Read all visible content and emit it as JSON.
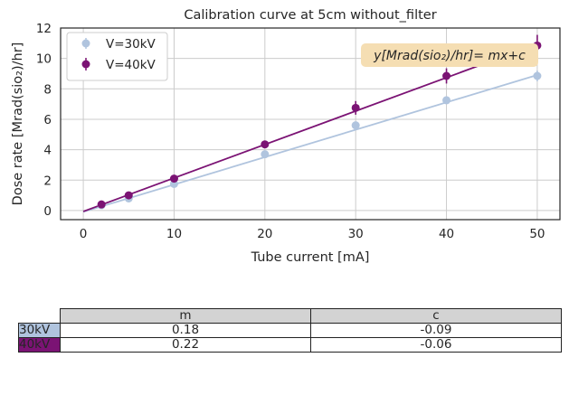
{
  "chart_data": {
    "type": "scatter",
    "title": "Calibration curve at 5cm without_filter",
    "xlabel": "Tube current [mA]",
    "ylabel": "Dose rate [Mrad(sio₂)/hr]",
    "xlim": [
      -2.5,
      52.5
    ],
    "ylim": [
      -0.6,
      12.0
    ],
    "xticks": [
      0,
      10,
      20,
      30,
      40,
      50
    ],
    "yticks": [
      0,
      2,
      4,
      6,
      8,
      10,
      12
    ],
    "grid": true,
    "legend_position": "top-left",
    "annotation": "y[Mrad(sio₂)/hr]= mx+c",
    "series": [
      {
        "name": "V=30kV",
        "color": "#b0c4de",
        "x": [
          2,
          5,
          10,
          20,
          30,
          40,
          50
        ],
        "y": [
          0.35,
          0.8,
          1.75,
          3.7,
          5.6,
          7.25,
          8.85
        ],
        "yerr": [
          0.05,
          0.05,
          0.1,
          0.15,
          0.2,
          0.25,
          0.35
        ],
        "fit": {
          "m": 0.18,
          "c": -0.09
        }
      },
      {
        "name": "V=40kV",
        "color": "#7b1374",
        "x": [
          2,
          5,
          10,
          20,
          30,
          40,
          50
        ],
        "y": [
          0.4,
          1.0,
          2.1,
          4.35,
          6.75,
          8.85,
          10.85
        ],
        "yerr": [
          0.08,
          0.1,
          0.15,
          0.25,
          0.45,
          0.5,
          0.7
        ],
        "fit": {
          "m": 0.22,
          "c": -0.06
        }
      }
    ]
  },
  "table": {
    "headers": [
      "m",
      "c"
    ],
    "rows": [
      {
        "label": "30kV",
        "color": "#b0c4de",
        "m": "0.18",
        "c": "-0.09"
      },
      {
        "label": "40kV",
        "color": "#7b1374",
        "m": "0.22",
        "c": "-0.06"
      }
    ]
  }
}
